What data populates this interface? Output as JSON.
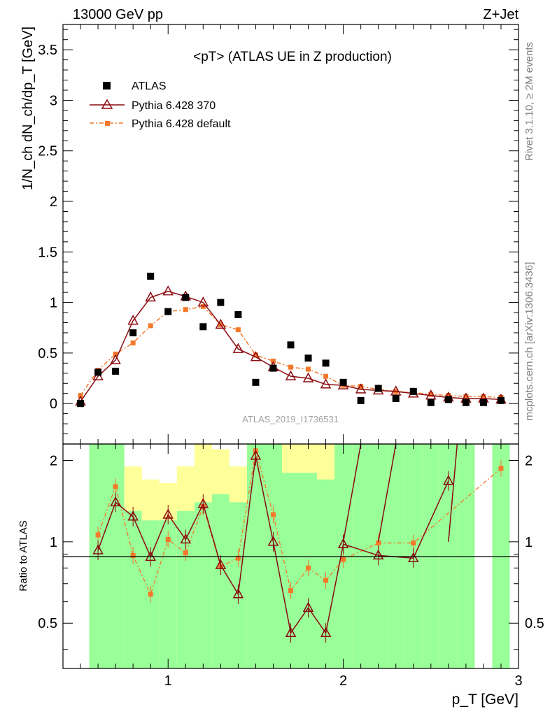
{
  "header": {
    "left": "13000 GeV pp",
    "right": "Z+Jet"
  },
  "side_labels": {
    "rivet": "Rivet 3.1.10, ≥ 2M events",
    "mcplots": "mcplots.cern.ch [arXiv:1306.3436]"
  },
  "main": {
    "title": "<pT> (ATLAS UE in Z production)",
    "watermark": "ATLAS_2019_I1736531",
    "ylabel": "1/N_ch dN_ch/dp_T [GeV]"
  },
  "ratio": {
    "ylabel": "Ratio to ATLAS"
  },
  "colors": {
    "atlas": "#000000",
    "pythia370": "#8b0a0f",
    "pythiadef": "#f4782a",
    "band_green": "#99ff99",
    "band_yellow": "#ffff99"
  },
  "chart_data": [
    {
      "type": "scatter",
      "title": "<pT> (ATLAS UE in Z production)",
      "xlabel": "p_T [GeV]",
      "ylabel": "1/N_ch dN_ch/dp_T [GeV]",
      "xlim": [
        0.4,
        3.0
      ],
      "ylim": [
        -0.4,
        3.75
      ],
      "xticks": [
        "1",
        "2",
        "3"
      ],
      "yticks": [
        "0",
        "0.5",
        "1",
        "1.5",
        "2",
        "2.5",
        "3",
        "3.5"
      ],
      "legend": [
        "ATLAS",
        "Pythia 6.428 370",
        "Pythia 6.428 default"
      ],
      "legend_position": "top-left",
      "series": [
        {
          "name": "ATLAS",
          "x": [
            0.5,
            0.6,
            0.7,
            0.8,
            0.9,
            1.0,
            1.1,
            1.2,
            1.3,
            1.4,
            1.5,
            1.6,
            1.7,
            1.8,
            1.9,
            2.0,
            2.1,
            2.2,
            2.3,
            2.4,
            2.5,
            2.6,
            2.7,
            2.8,
            2.9
          ],
          "y": [
            0.0,
            0.31,
            0.32,
            0.7,
            1.26,
            0.91,
            1.05,
            0.76,
            1.0,
            0.88,
            0.21,
            0.35,
            0.58,
            0.45,
            0.4,
            0.21,
            0.03,
            0.15,
            0.05,
            0.12,
            0.01,
            0.04,
            0.01,
            0.01,
            0.03
          ]
        },
        {
          "name": "Pythia 6.428 370",
          "x": [
            0.5,
            0.6,
            0.7,
            0.8,
            0.9,
            1.0,
            1.1,
            1.2,
            1.3,
            1.4,
            1.5,
            1.6,
            1.7,
            1.8,
            1.9,
            2.0,
            2.1,
            2.2,
            2.3,
            2.4,
            2.5,
            2.6,
            2.7,
            2.8,
            2.9
          ],
          "y": [
            0.02,
            0.27,
            0.43,
            0.82,
            1.05,
            1.11,
            1.06,
            1.0,
            0.78,
            0.54,
            0.46,
            0.36,
            0.27,
            0.25,
            0.19,
            0.18,
            0.14,
            0.13,
            0.12,
            0.1,
            0.08,
            0.06,
            0.05,
            0.05,
            0.04
          ]
        },
        {
          "name": "Pythia 6.428 default",
          "x": [
            0.5,
            0.6,
            0.7,
            0.8,
            0.9,
            1.0,
            1.1,
            1.2,
            1.3,
            1.4,
            1.5,
            1.6,
            1.7,
            1.8,
            1.9,
            2.0,
            2.1,
            2.2,
            2.3,
            2.4,
            2.5,
            2.6,
            2.7,
            2.8,
            2.9
          ],
          "y": [
            0.08,
            0.33,
            0.49,
            0.6,
            0.77,
            0.91,
            0.93,
            0.96,
            0.78,
            0.73,
            0.48,
            0.42,
            0.36,
            0.34,
            0.27,
            0.18,
            0.17,
            0.14,
            0.12,
            0.11,
            0.09,
            0.08,
            0.07,
            0.07,
            0.06
          ]
        }
      ]
    },
    {
      "type": "line",
      "title": "Ratio to ATLAS",
      "xlabel": "p_T [GeV]",
      "ylabel": "Ratio to ATLAS",
      "xlim": [
        0.4,
        3.0
      ],
      "ylim": [
        0.34,
        2.3
      ],
      "yticks": [
        "0.5",
        "1",
        "2"
      ],
      "bands": {
        "edges": [
          0.55,
          0.75,
          0.85,
          0.95,
          1.05,
          1.15,
          1.25,
          1.35,
          1.45,
          1.55,
          1.65,
          1.75,
          1.85,
          1.95,
          2.05,
          2.15,
          2.25,
          2.35,
          2.45,
          2.55,
          2.65,
          2.75
        ],
        "green_low": [
          0.34,
          0.34,
          0.34,
          0.34,
          0.34,
          0.34,
          0.34,
          0.34,
          0.34,
          0.34,
          0.34,
          0.34,
          0.34,
          0.34,
          0.34,
          0.34,
          0.34,
          0.34,
          0.34,
          0.34,
          0.34
        ],
        "green_high": [
          2.3,
          1.3,
          1.2,
          1.2,
          1.3,
          1.4,
          1.5,
          1.4,
          2.3,
          2.3,
          1.8,
          1.8,
          1.7,
          2.3,
          2.3,
          2.3,
          2.3,
          2.3,
          2.3,
          2.3,
          2.3
        ],
        "yellow_high": [
          2.3,
          1.9,
          1.7,
          1.65,
          1.9,
          2.3,
          2.2,
          1.9,
          2.3,
          2.3,
          2.3,
          2.3,
          2.3,
          2.3,
          2.3,
          2.3,
          2.3,
          2.3,
          2.3,
          2.3,
          2.3
        ],
        "extra_green": [
          [
            2.85,
            2.95
          ]
        ]
      },
      "series": [
        {
          "name": "Pythia 6.428 370",
          "x": [
            0.6,
            0.7,
            0.8,
            0.9,
            1.0,
            1.1,
            1.2,
            1.3,
            1.4,
            1.5,
            1.6,
            1.7,
            1.8,
            1.9,
            2.0,
            2.2,
            2.4,
            2.6
          ],
          "y": [
            0.93,
            1.4,
            1.24,
            0.88,
            1.26,
            1.02,
            1.38,
            0.82,
            0.64,
            2.08,
            1.0,
            0.46,
            0.57,
            0.46,
            0.98,
            0.89,
            0.87,
            1.68
          ]
        },
        {
          "name": "Pythia 6.428 default",
          "x": [
            0.6,
            0.7,
            0.8,
            0.9,
            1.0,
            1.1,
            1.2,
            1.3,
            1.4,
            1.5,
            1.6,
            1.7,
            1.8,
            1.9,
            2.0,
            2.2,
            2.4,
            2.9
          ],
          "y": [
            1.06,
            1.6,
            0.89,
            0.64,
            1.02,
            0.91,
            1.35,
            0.81,
            0.87,
            2.17,
            1.26,
            0.66,
            0.8,
            0.72,
            0.86,
            0.99,
            0.99,
            1.87
          ]
        }
      ]
    }
  ]
}
